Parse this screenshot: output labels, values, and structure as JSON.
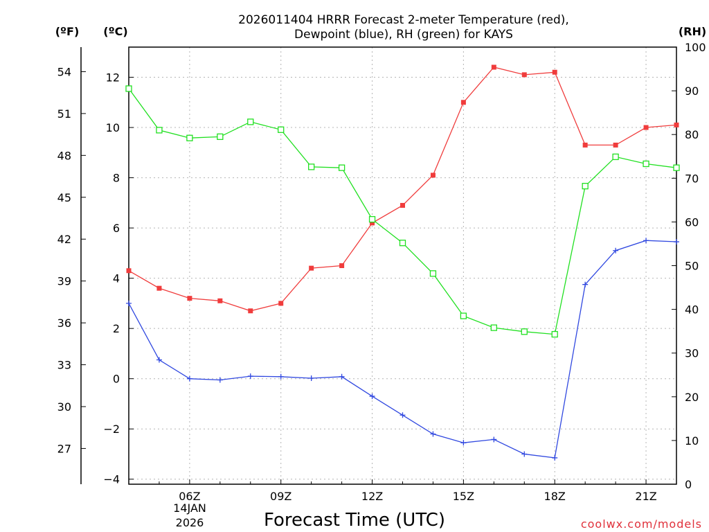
{
  "chart_data": {
    "type": "line",
    "title_line1": "2026011404 HRRR Forecast 2-meter Temperature (red),",
    "title_line2": "Dewpoint (blue), RH (green) for KAYS",
    "xlabel": "Forecast Time (UTC)",
    "credit": "coolwx.com/models",
    "date_line1": "14JAN",
    "date_line2": "2026",
    "units": {
      "fahrenheit": "(ºF)",
      "celsius": "(ºC)",
      "rh": "(RH)"
    },
    "x_hours": [
      4,
      5,
      6,
      7,
      8,
      9,
      10,
      11,
      12,
      13,
      14,
      15,
      16,
      17,
      18,
      19,
      20,
      21,
      22
    ],
    "xlim": [
      4,
      22
    ],
    "x_ticks": [
      {
        "hour": 6,
        "label": "06Z"
      },
      {
        "hour": 9,
        "label": "09Z"
      },
      {
        "hour": 12,
        "label": "12Z"
      },
      {
        "hour": 15,
        "label": "15Z"
      },
      {
        "hour": 18,
        "label": "18Z"
      },
      {
        "hour": 21,
        "label": "21Z"
      }
    ],
    "celsius_axis": {
      "range": [
        -4.2,
        13.2
      ],
      "ticks": [
        "-4",
        "-2",
        "0",
        "2",
        "4",
        "6",
        "8",
        "10",
        "12"
      ]
    },
    "fahrenheit_axis": {
      "range": [
        24.44,
        55.76
      ],
      "ticks": [
        "27",
        "30",
        "33",
        "36",
        "39",
        "42",
        "45",
        "48",
        "51",
        "54"
      ]
    },
    "rh_axis": {
      "range": [
        0,
        100
      ],
      "ticks": [
        "0",
        "10",
        "20",
        "30",
        "40",
        "50",
        "60",
        "70",
        "80",
        "90",
        "100"
      ]
    },
    "series": [
      {
        "name": "2-meter Temperature",
        "unit": "C",
        "axis": "celsius",
        "color": "#f03c3c",
        "marker": "filled-square",
        "values": [
          4.3,
          3.6,
          3.2,
          3.1,
          2.7,
          3.0,
          4.4,
          4.5,
          6.2,
          6.9,
          8.1,
          11.0,
          12.4,
          12.1,
          12.2,
          9.3,
          9.3,
          10.0,
          10.1
        ]
      },
      {
        "name": "Dewpoint",
        "unit": "C",
        "axis": "celsius",
        "color": "#3048e0",
        "marker": "plus",
        "values": [
          3.0,
          0.75,
          0.0,
          -0.05,
          0.1,
          0.08,
          0.02,
          0.08,
          -0.7,
          -1.45,
          -2.2,
          -2.55,
          -2.42,
          -3.0,
          -3.15,
          3.75,
          5.1,
          5.5,
          5.45
        ]
      },
      {
        "name": "RH",
        "unit": "%",
        "axis": "rh",
        "color": "#20e020",
        "marker": "open-square",
        "values": [
          90.5,
          81,
          79.2,
          79.5,
          82.9,
          81.1,
          72.6,
          72.4,
          60.6,
          55.2,
          48.2,
          38.5,
          35.8,
          34.9,
          34.3,
          68.2,
          74.9,
          73.3,
          72.4
        ]
      }
    ]
  }
}
